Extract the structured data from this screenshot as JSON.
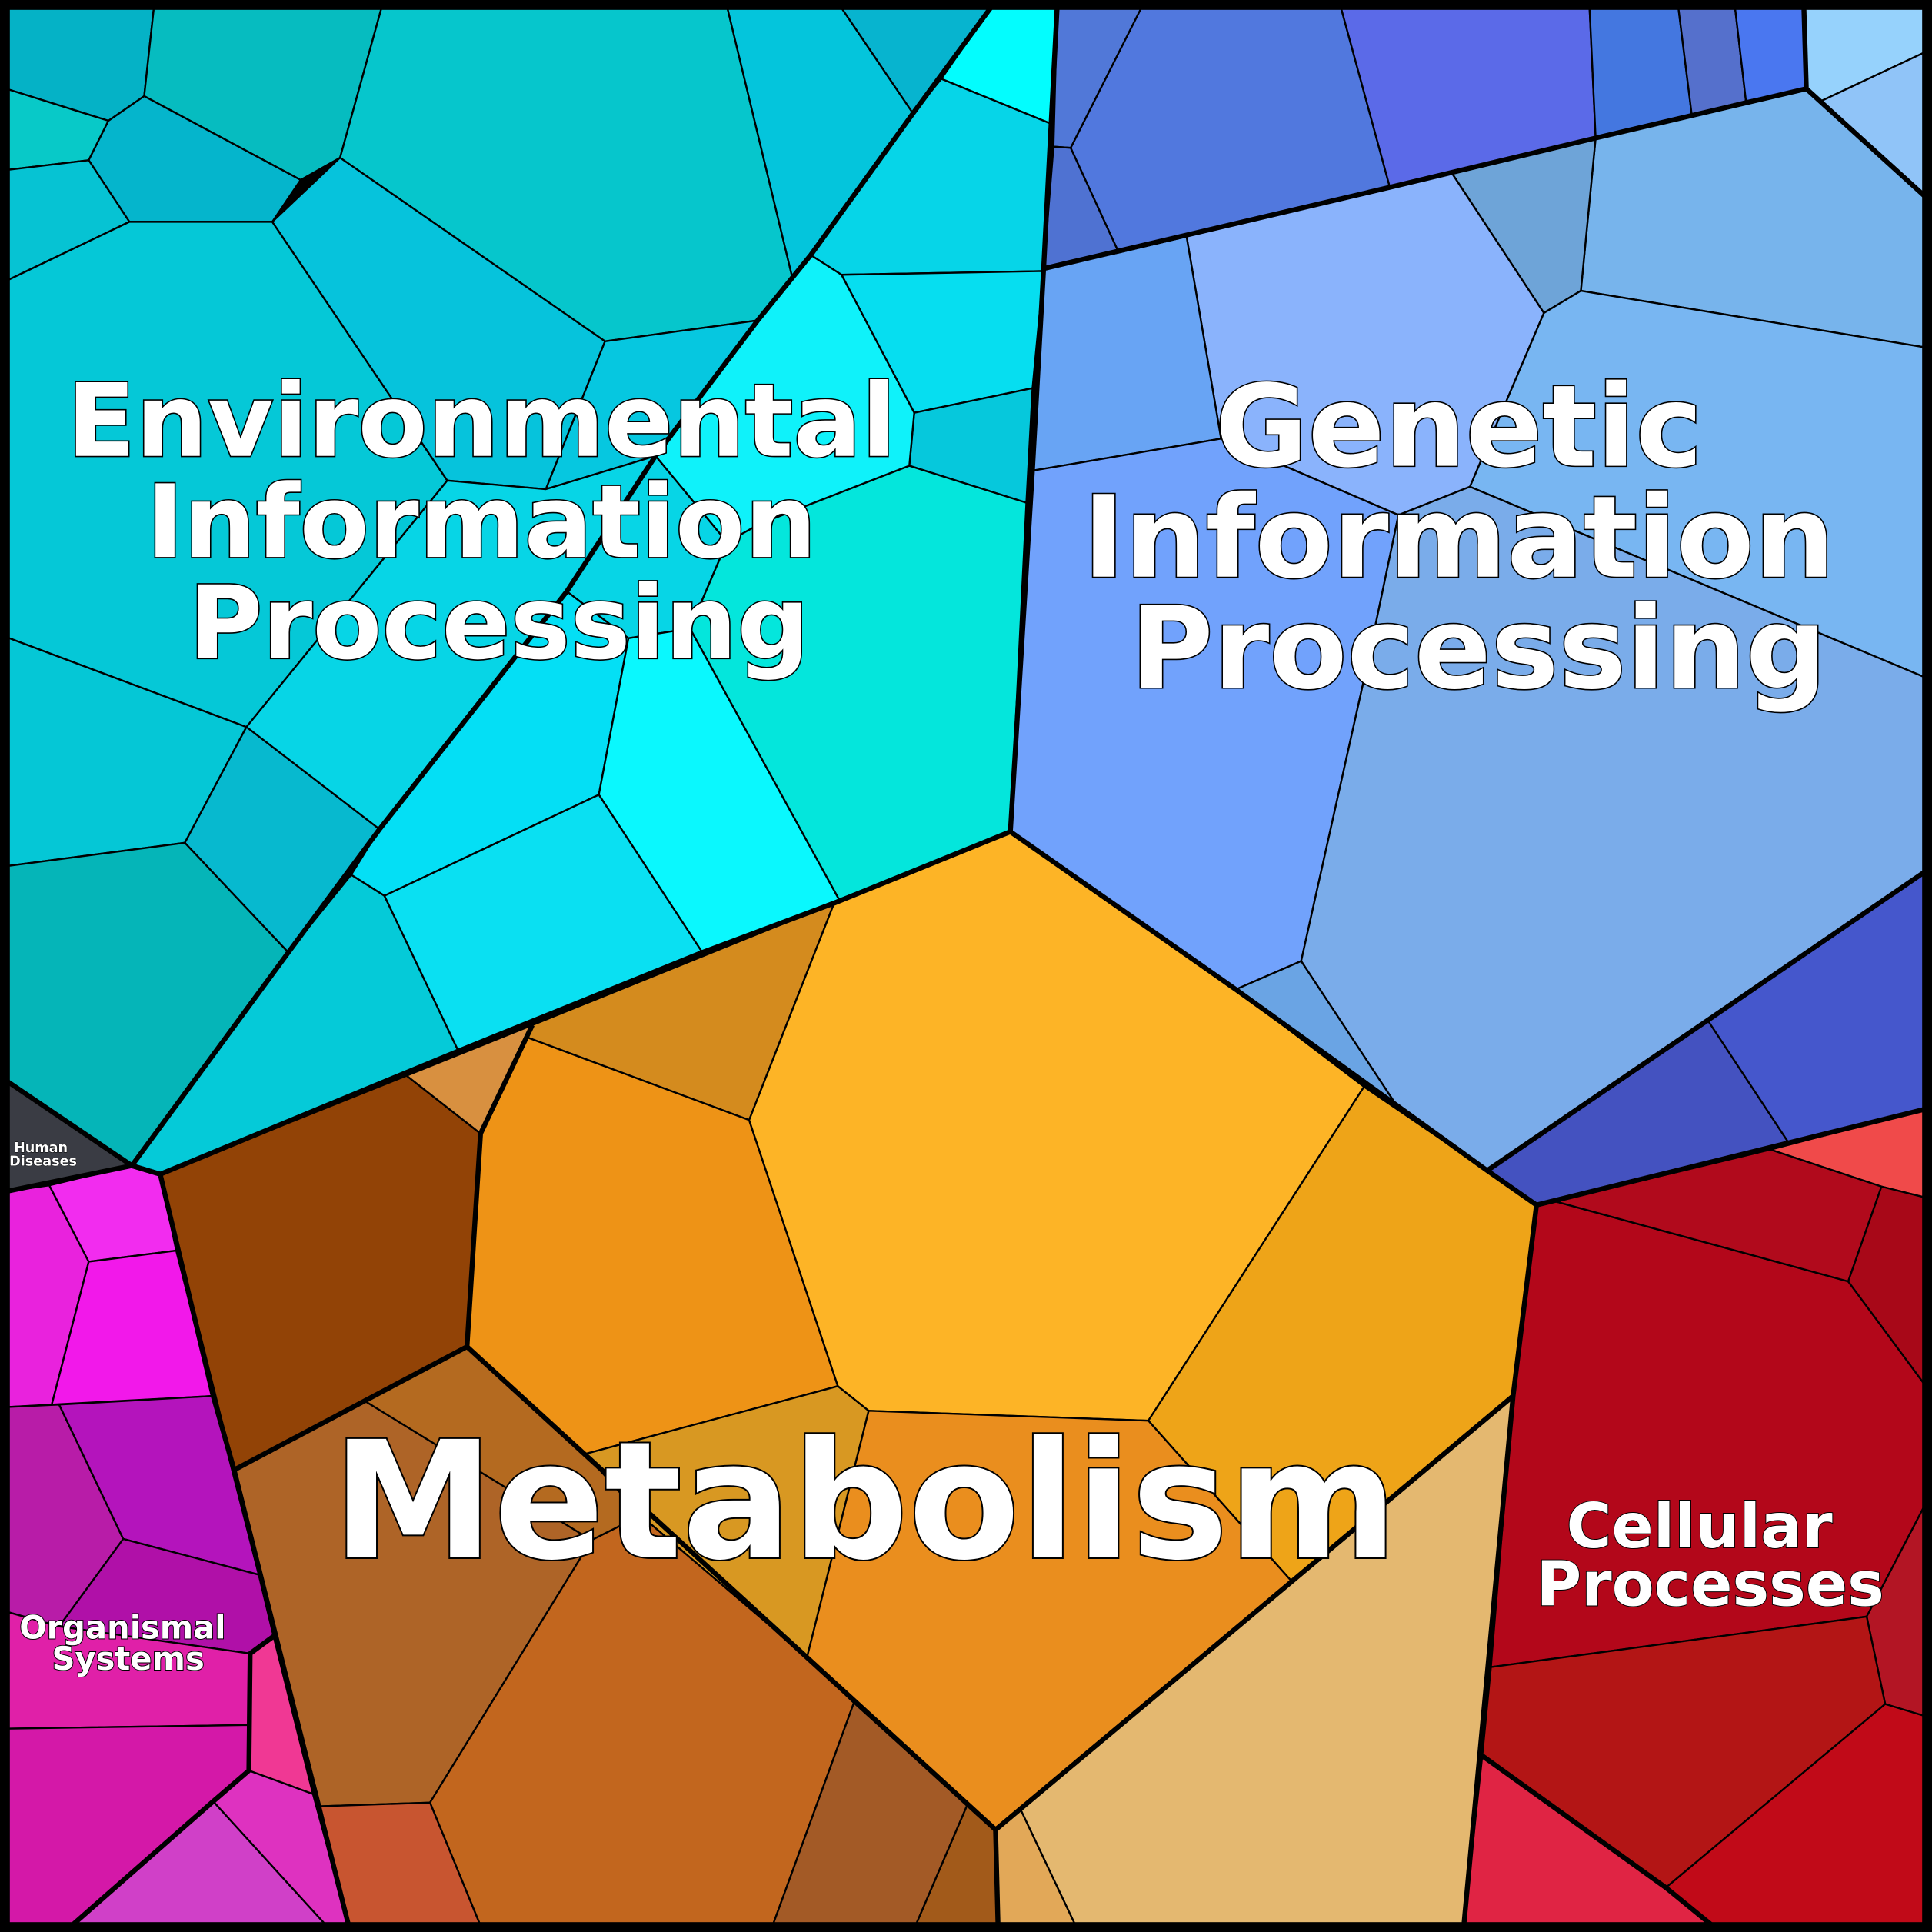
{
  "diagram": {
    "type": "voronoi-treemap",
    "categories": [
      {
        "key": "environmental",
        "lines": [
          "Environmental",
          "Information",
          "Processing"
        ],
        "color": "#06c8d8"
      },
      {
        "key": "genetic",
        "lines": [
          "Genetic",
          "Information",
          "Processing"
        ],
        "color": "#75a8f0"
      },
      {
        "key": "metabolism",
        "lines": [
          "Metabolism"
        ],
        "color": "#f0a020"
      },
      {
        "key": "cellular",
        "lines": [
          "Cellular",
          "Processes"
        ],
        "color": "#b3071a"
      },
      {
        "key": "organismal",
        "lines": [
          "Organismal",
          "Systems"
        ],
        "color": "#d020b8"
      },
      {
        "key": "human",
        "lines": [
          "Human",
          "Diseases"
        ],
        "color": "#3a3c44"
      }
    ]
  }
}
